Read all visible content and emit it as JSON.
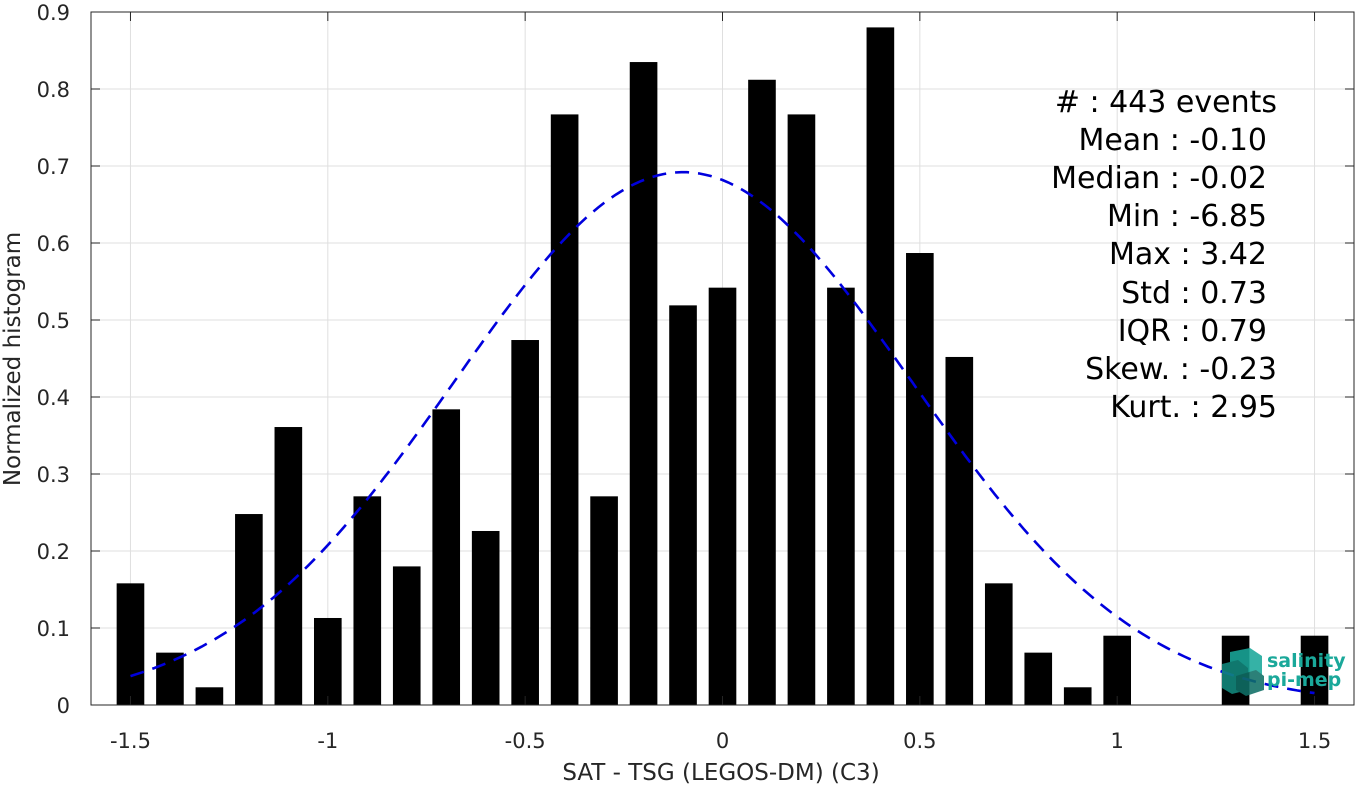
{
  "chart_data": {
    "type": "bar",
    "xlabel": "SAT - TSG (LEGOS-DM) (C3)",
    "ylabel": "Normalized histogram",
    "xlim": [
      -1.6,
      1.6
    ],
    "ylim": [
      0,
      0.9
    ],
    "grid": true,
    "x_ticks": [
      "-1.5",
      "-1",
      "-0.5",
      "0",
      "0.5",
      "1",
      "1.5"
    ],
    "y_ticks": [
      "0",
      "0.1",
      "0.2",
      "0.3",
      "0.4",
      "0.5",
      "0.6",
      "0.7",
      "0.8",
      "0.9"
    ],
    "bar_width": 0.07,
    "bars": {
      "x": [
        -1.5,
        -1.4,
        -1.3,
        -1.2,
        -1.1,
        -1.0,
        -0.9,
        -0.8,
        -0.7,
        -0.6,
        -0.5,
        -0.4,
        -0.3,
        -0.2,
        -0.1,
        0.0,
        0.1,
        0.2,
        0.3,
        0.4,
        0.5,
        0.6,
        0.7,
        0.8,
        0.9,
        1.0,
        1.1,
        1.2,
        1.3,
        1.4,
        1.5
      ],
      "values": [
        0.158,
        0.068,
        0.023,
        0.248,
        0.361,
        0.113,
        0.271,
        0.18,
        0.384,
        0.226,
        0.474,
        0.767,
        0.271,
        0.835,
        0.519,
        0.542,
        0.812,
        0.767,
        0.542,
        0.88,
        0.587,
        0.452,
        0.158,
        0.068,
        0.023,
        0.09,
        0.0,
        0.0,
        0.09,
        0.0,
        0.09
      ]
    },
    "fit_curve": {
      "style": "dashed",
      "color": "#0000dd",
      "mean": -0.1,
      "std": 0.58,
      "peak": 0.692,
      "x_range": [
        -1.5,
        1.5
      ]
    },
    "stats": [
      {
        "label": "#  : 443 events"
      },
      {
        "label": "Mean : -0.10"
      },
      {
        "label": "Median : -0.02"
      },
      {
        "label": "Min : -6.85"
      },
      {
        "label": "Max : 3.42"
      },
      {
        "label": "Std : 0.73"
      },
      {
        "label": "IQR : 0.79"
      },
      {
        "label": "Skew. : -0.23"
      },
      {
        "label": "Kurt. : 2.95"
      }
    ],
    "logo": {
      "line1": "salinity",
      "line2": "pi-mep"
    },
    "colors": {
      "bars": "#000000",
      "grid": "#dfdfdf",
      "axis": "#262626",
      "logo": "#1aa89a"
    }
  }
}
